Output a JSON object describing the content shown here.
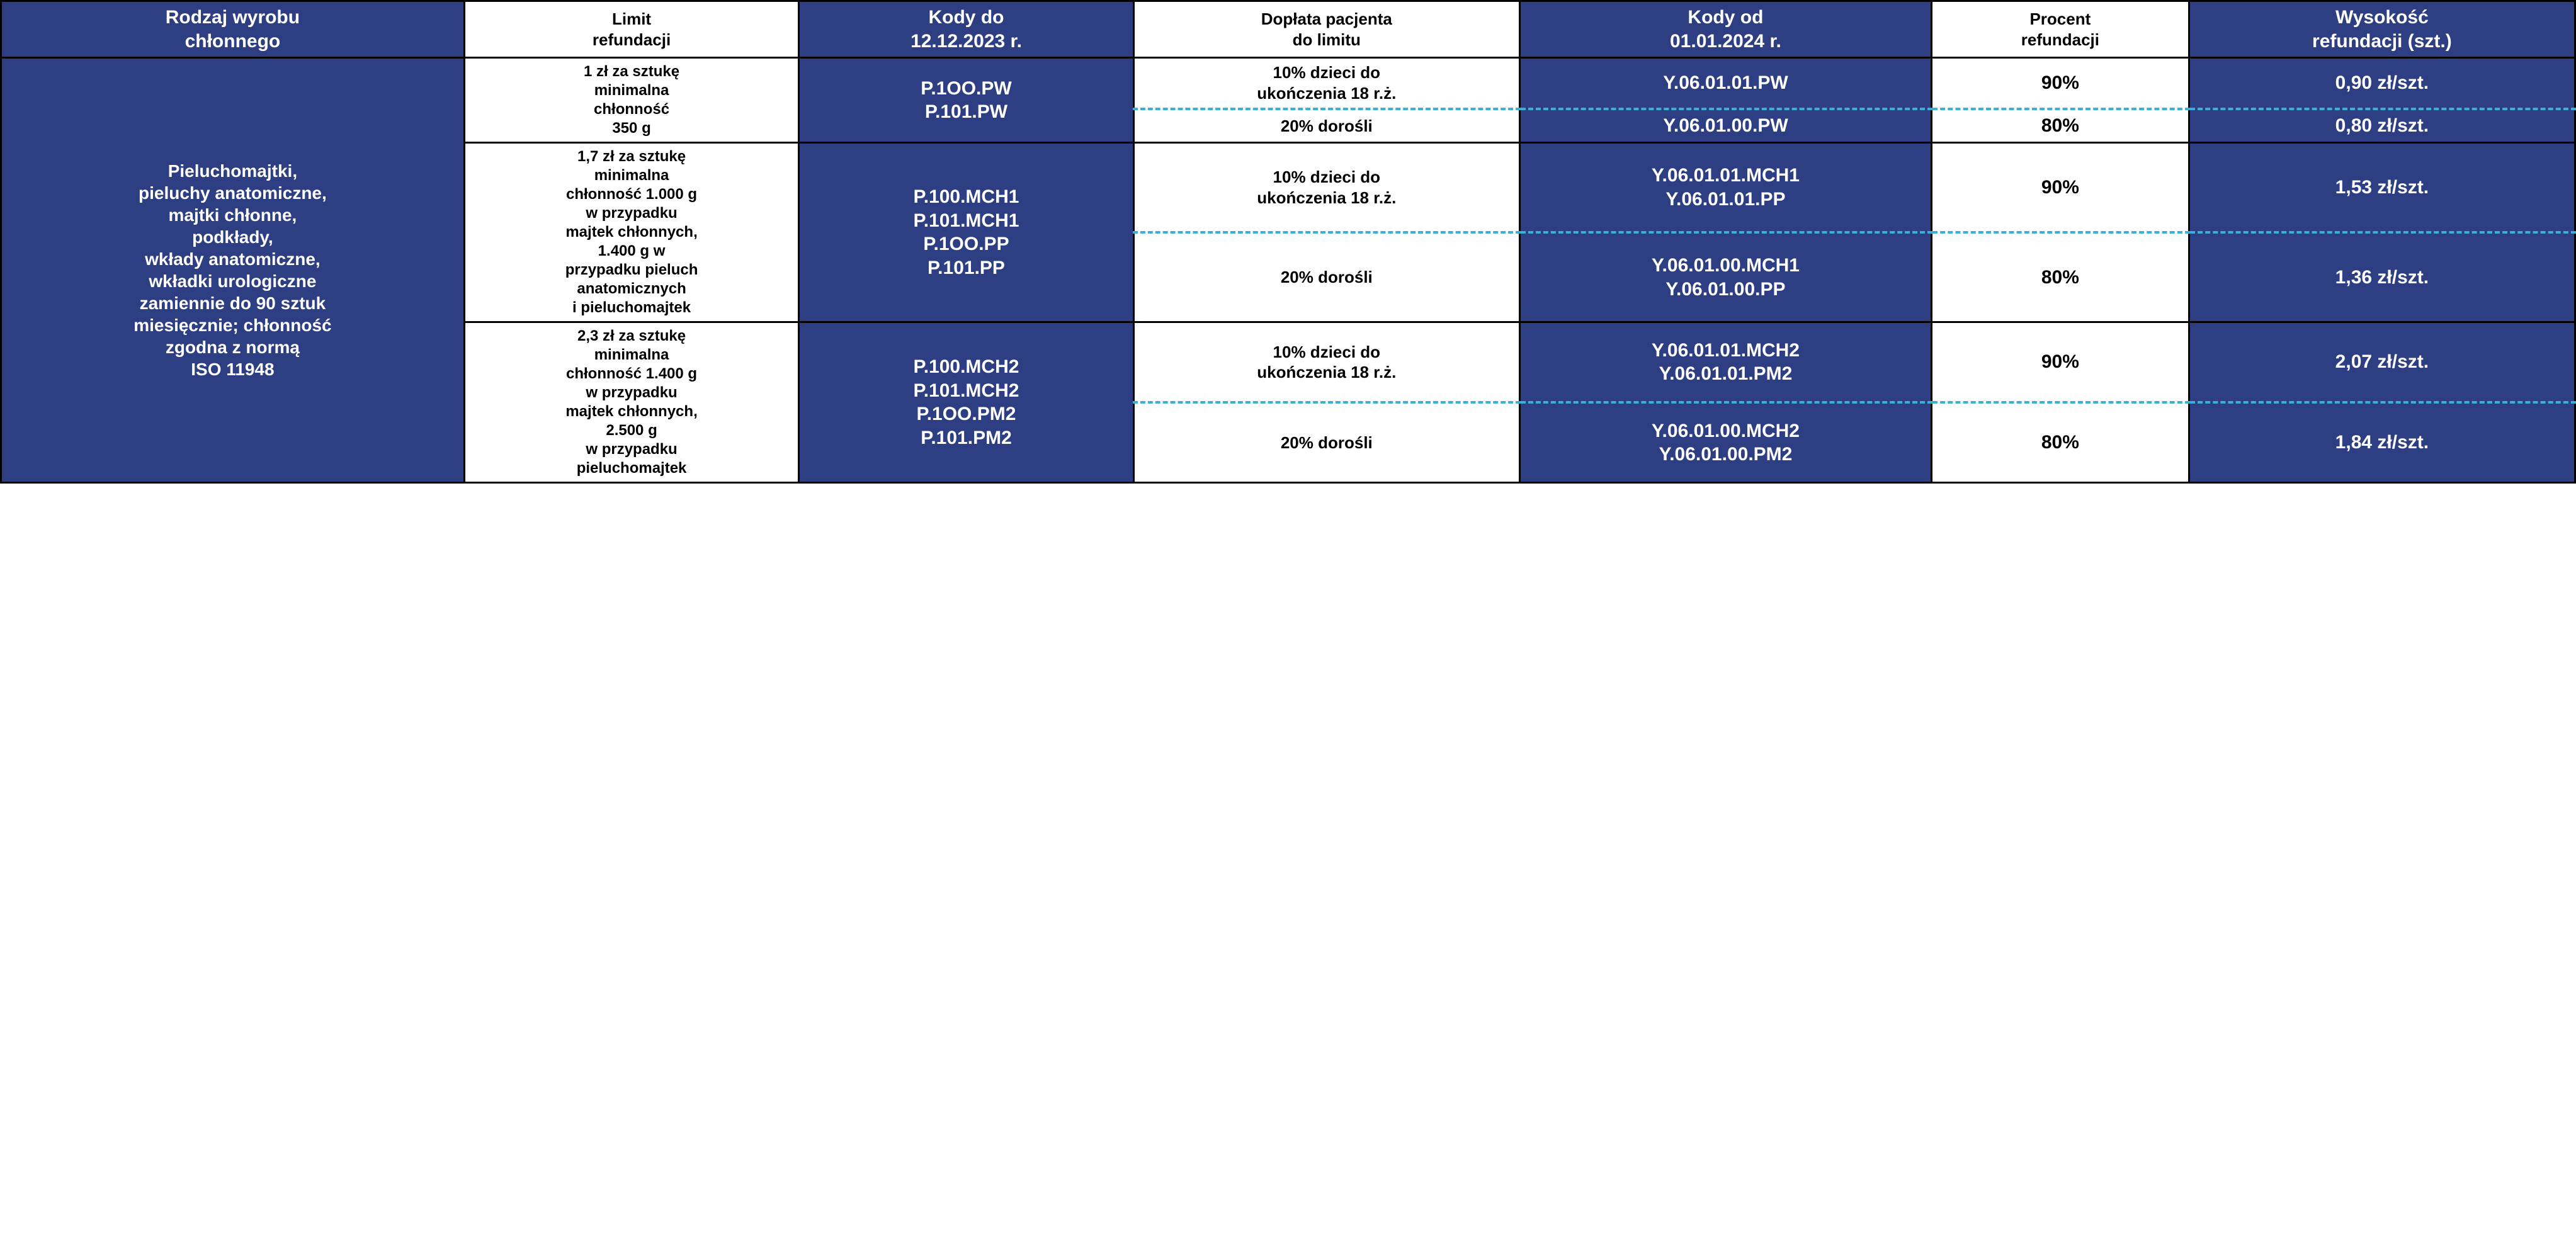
{
  "headers": {
    "c0": "Rodzaj wyrobu\nchłonnego",
    "c1": "Limit\nrefundacji",
    "c2": "Kody do\n12.12.2023 r.",
    "c3": "Dopłata pacjenta\ndo limitu",
    "c4": "Kody od\n01.01.2024 r.",
    "c5": "Procent\nrefundacji",
    "c6": "Wysokość\nrefundacji (szt.)"
  },
  "product_type": "Pieluchomajtki,\npieluchy anatomiczne,\nmajtki chłonne,\npodkłady,\nwkłady anatomiczne,\nwkładki urologiczne\nzamiennie do 90 sztuk\nmiesięcznie; chłonność\nzgodna z normą\nISO 11948",
  "groups": [
    {
      "limit": "1 zł za sztukę\nminimalna\nchłonność\n350 g",
      "codes_old": "P.1OO.PW\nP.101.PW",
      "rows": [
        {
          "doplata": "10% dzieci do\nukończenia 18 r.ż.",
          "codes_new": "Y.06.01.01.PW",
          "pct": "90%",
          "amount": "0,90 zł/szt."
        },
        {
          "doplata": "20% dorośli",
          "codes_new": "Y.06.01.00.PW",
          "pct": "80%",
          "amount": "0,80 zł/szt."
        }
      ]
    },
    {
      "limit": "1,7 zł za sztukę\nminimalna\nchłonność 1.000 g\nw przypadku\nmajtek chłonnych,\n1.400 g w\nprzypadku pieluch\nanatomicznych\ni pieluchomajtek",
      "codes_old": "P.100.MCH1\nP.101.MCH1\nP.1OO.PP\nP.101.PP",
      "rows": [
        {
          "doplata": "10% dzieci do\nukończenia 18 r.ż.",
          "codes_new": "Y.06.01.01.MCH1\nY.06.01.01.PP",
          "pct": "90%",
          "amount": "1,53 zł/szt."
        },
        {
          "doplata": "20% dorośli",
          "codes_new": "Y.06.01.00.MCH1\nY.06.01.00.PP",
          "pct": "80%",
          "amount": "1,36 zł/szt."
        }
      ]
    },
    {
      "limit": "2,3 zł za sztukę\nminimalna\nchłonność 1.400 g\nw przypadku\nmajtek chłonnych,\n2.500 g\nw przypadku\npieluchomajtek",
      "codes_old": "P.100.MCH2\nP.101.MCH2\nP.1OO.PM2\nP.101.PM2",
      "rows": [
        {
          "doplata": "10% dzieci do\nukończenia 18 r.ż.",
          "codes_new": "Y.06.01.01.MCH2\nY.06.01.01.PM2",
          "pct": "90%",
          "amount": "2,07 zł/szt."
        },
        {
          "doplata": "20% dorośli",
          "codes_new": "Y.06.01.00.MCH2\nY.06.01.00.PM2",
          "pct": "80%",
          "amount": "1,84 zł/szt."
        }
      ]
    }
  ],
  "colors": {
    "blue_bg": "#2d3e82",
    "dash_border": "#39b1d6",
    "border": "#000000",
    "white": "#ffffff"
  },
  "col_widths_pct": [
    18,
    13,
    13,
    15,
    16,
    10,
    15
  ]
}
